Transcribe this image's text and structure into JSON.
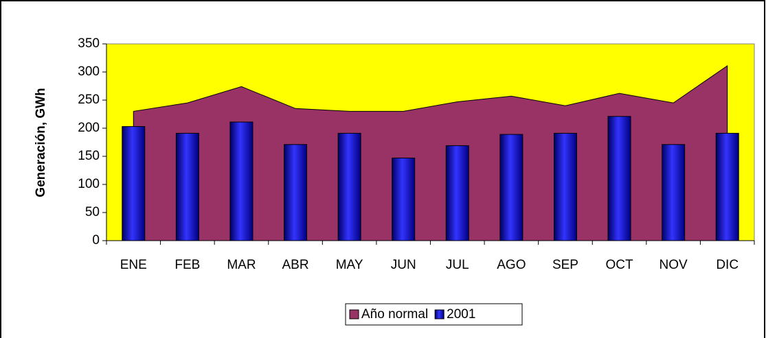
{
  "chart_data": {
    "type": "combo",
    "y_label": "Generación, GWh",
    "categories": [
      "ENE",
      "FEB",
      "MAR",
      "ABR",
      "MAY",
      "JUN",
      "JUL",
      "AGO",
      "SEP",
      "OCT",
      "NOV",
      "DIC"
    ],
    "series": [
      {
        "name": "Año normal",
        "type": "area",
        "color": "#993366",
        "values": [
          230,
          245,
          274,
          235,
          230,
          230,
          247,
          257,
          240,
          262,
          245,
          311
        ]
      },
      {
        "name": "2001",
        "type": "bar",
        "color": "#0000ff",
        "values": [
          203,
          191,
          211,
          171,
          191,
          147,
          169,
          189,
          191,
          221,
          171,
          191
        ]
      }
    ],
    "ylim": [
      0,
      350
    ],
    "yticks": [
      0,
      50,
      100,
      150,
      200,
      250,
      300,
      350
    ],
    "plot_background": "#ffff00",
    "legend": "bottom"
  }
}
